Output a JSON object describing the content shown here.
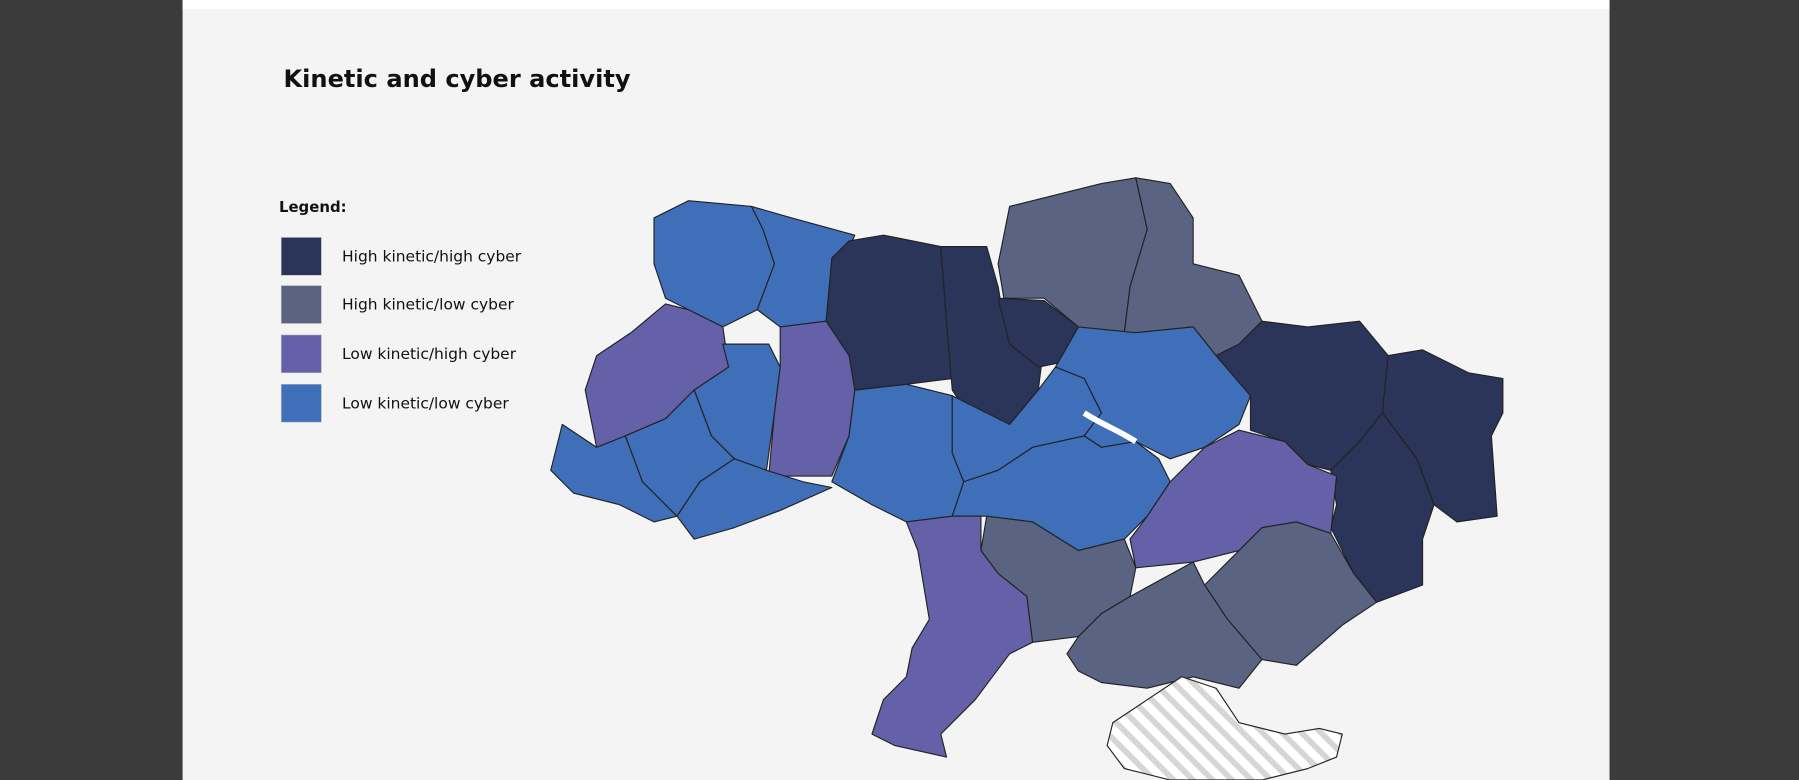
{
  "title": "Kinetic and cyber activity",
  "legend": {
    "title": "Legend:",
    "items": [
      {
        "label": "High kinetic/high cyber",
        "color": "#2b3459"
      },
      {
        "label": "High kinetic/low cyber",
        "color": "#5a6482"
      },
      {
        "label": "Low kinetic/high cyber",
        "color": "#6461a8"
      },
      {
        "label": "Low kinetic/low cyber",
        "color": "#3f6fb8"
      }
    ]
  }
}
